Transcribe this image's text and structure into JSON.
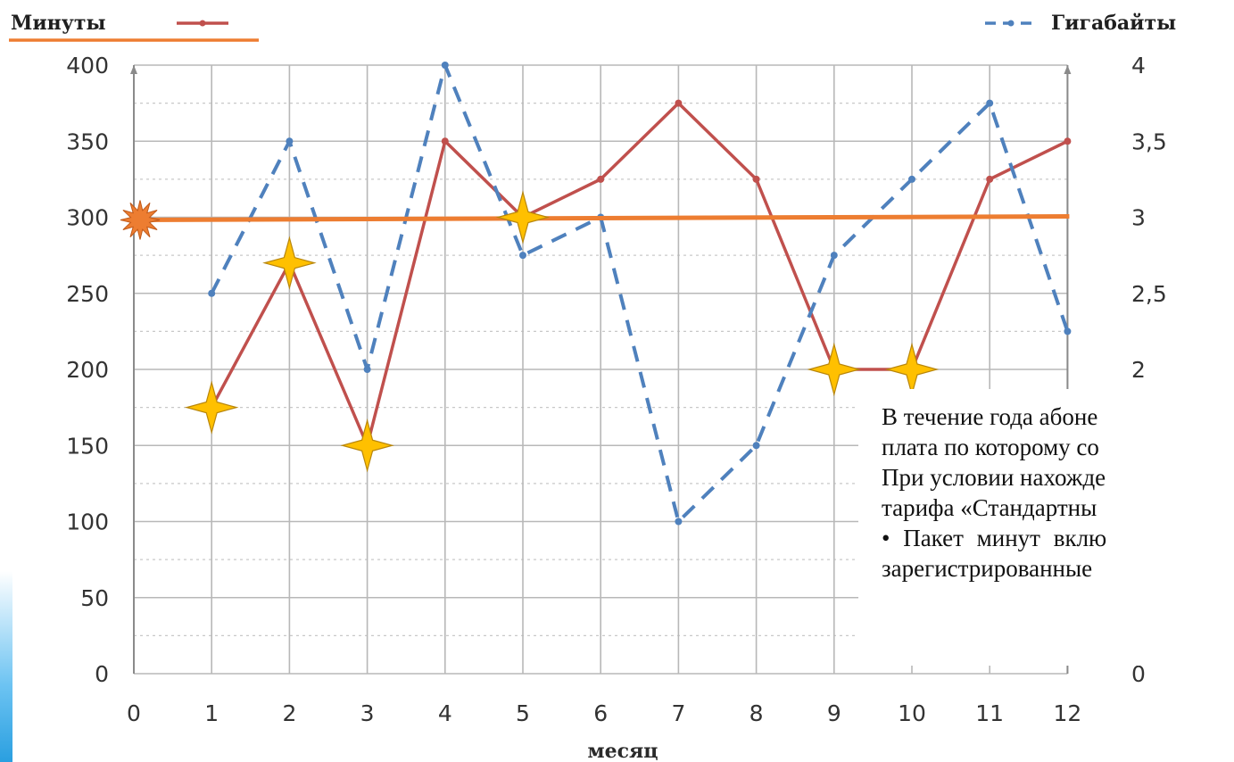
{
  "chart_data": {
    "type": "line",
    "xlabel": "месяц",
    "x": [
      0,
      1,
      2,
      3,
      4,
      5,
      6,
      7,
      8,
      9,
      10,
      11,
      12
    ],
    "x_ticks": [
      "0",
      "1",
      "2",
      "3",
      "4",
      "5",
      "6",
      "7",
      "8",
      "9",
      "10",
      "11",
      "12"
    ],
    "y_left_ticks": [
      "0",
      "50",
      "100",
      "150",
      "200",
      "250",
      "300",
      "350",
      "400"
    ],
    "y_right_ticks": [
      "0",
      "2",
      "2,5",
      "3",
      "3,5",
      "4"
    ],
    "ylim_left": [
      0,
      400
    ],
    "ylim_right": [
      0,
      4
    ],
    "grid": true,
    "series": [
      {
        "name": "Минуты",
        "axis": "left",
        "style": "solid",
        "color": "#c0504d",
        "x": [
          1,
          2,
          3,
          4,
          5,
          6,
          7,
          8,
          9,
          10,
          11,
          12
        ],
        "values": [
          175,
          270,
          150,
          350,
          300,
          325,
          375,
          325,
          200,
          200,
          325,
          350
        ]
      },
      {
        "name": "Гигабайты",
        "axis": "right",
        "style": "dashed",
        "color": "#4f81bd",
        "x": [
          1,
          2,
          3,
          4,
          5,
          6,
          7,
          8,
          9,
          10,
          11,
          12
        ],
        "values": [
          2.5,
          3.5,
          2,
          4,
          2.75,
          3,
          1,
          1.5,
          2.75,
          3.25,
          3.75,
          2.25
        ]
      }
    ],
    "annotations": {
      "threshold_value": 300,
      "threshold_color": "#ed7d31",
      "star_months": [
        1,
        2,
        3,
        5,
        9,
        10
      ],
      "star_color": "#ffc000"
    }
  },
  "note_lines": [
    "В течение года абоне",
    "плата по которому со",
    "При условии нахожде",
    "тарифа «Стандартны",
    "• Пакет минут вклю",
    "зарегистрированные"
  ]
}
